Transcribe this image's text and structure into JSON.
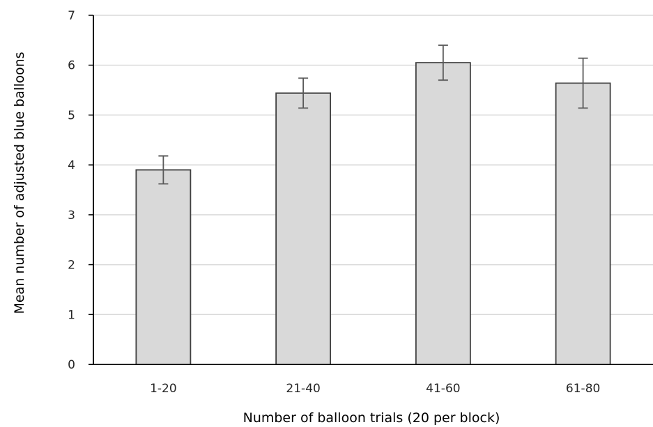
{
  "chart_data": {
    "type": "bar",
    "title": "",
    "xlabel": "Number of balloon trials (20 per block)",
    "ylabel": "Mean number of adjusted blue balloons",
    "categories": [
      "1-20",
      "21-40",
      "41-60",
      "61-80"
    ],
    "values": [
      3.9,
      5.44,
      6.05,
      5.64
    ],
    "error_low": [
      3.62,
      5.14,
      5.7,
      5.14
    ],
    "error_high": [
      4.18,
      5.74,
      6.4,
      6.14
    ],
    "ylim": [
      0,
      7
    ],
    "yticks": [
      0,
      1,
      2,
      3,
      4,
      5,
      6,
      7
    ],
    "ytick_labels": [
      "0",
      "1",
      "2",
      "3",
      "4",
      "5",
      "6",
      "7"
    ],
    "grid": "horizontal",
    "legend": "none",
    "colors": {
      "bar_fill": "#d9d9d9",
      "bar_stroke": "#404040",
      "grid": "#d9d9d9",
      "axis": "#000000",
      "error_bar": "#595959"
    }
  }
}
